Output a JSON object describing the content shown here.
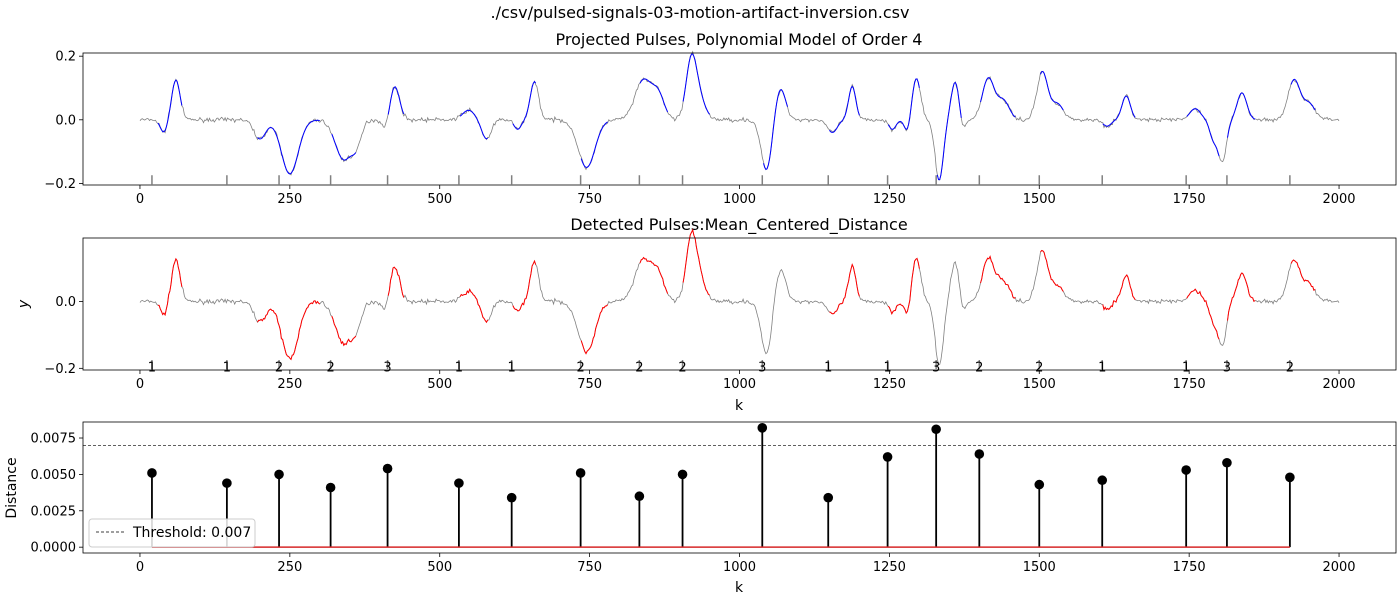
{
  "figure": {
    "suptitle": "./csv/pulsed-signals-03-motion-artifact-inversion.csv"
  },
  "colors": {
    "signal_gray": "#808080",
    "projected_blue": "#0000ff",
    "detected_red": "#ff0000",
    "stem_black": "#000000",
    "baseline_red": "#d62728",
    "axis": "#000000"
  },
  "chart_data": [
    {
      "type": "line",
      "title": "Projected Pulses, Polynomial Model of Order 4",
      "xlabel": "",
      "ylabel": "",
      "xlim": [
        -95,
        2095
      ],
      "ylim": [
        -0.205,
        0.21
      ],
      "xticks": [
        0,
        250,
        500,
        750,
        1000,
        1250,
        1500,
        1750,
        2000
      ],
      "xtick_labels": [
        "0",
        "250",
        "500",
        "750",
        "1000",
        "1250",
        "1500",
        "1750",
        "2000"
      ],
      "yticks": [
        0.2,
        0.0,
        -0.2
      ],
      "ytick_labels": [
        "0.2",
        "0.0",
        "−0.2"
      ],
      "series": [
        {
          "role": "raw signal",
          "color": "#808080"
        },
        {
          "role": "projected pulses",
          "color": "#0000ff"
        }
      ],
      "pulse_starts": [
        20,
        145,
        232,
        318,
        413,
        532,
        620,
        735,
        833,
        905,
        1038,
        1148,
        1247,
        1328,
        1400,
        1500,
        1605,
        1745,
        1813,
        1918
      ],
      "pulse_end": 1960
    },
    {
      "type": "line",
      "title": "Detected Pulses:Mean_Centered_Distance",
      "xlabel": "k",
      "ylabel": "y",
      "xlim": [
        -95,
        2095
      ],
      "ylim": [
        -0.205,
        0.19
      ],
      "xticks": [
        0,
        250,
        500,
        750,
        1000,
        1250,
        1500,
        1750,
        2000
      ],
      "xtick_labels": [
        "0",
        "250",
        "500",
        "750",
        "1000",
        "1250",
        "1500",
        "1750",
        "2000"
      ],
      "yticks": [
        0.0,
        -0.2
      ],
      "ytick_labels": [
        "0.0",
        "−0.2"
      ],
      "series": [
        {
          "role": "raw signal",
          "color": "#808080"
        },
        {
          "role": "detected pulses",
          "color": "#ff0000"
        }
      ],
      "pulse_starts": [
        20,
        145,
        232,
        318,
        413,
        532,
        620,
        735,
        833,
        905,
        1038,
        1148,
        1247,
        1328,
        1400,
        1500,
        1605,
        1745,
        1813,
        1918
      ],
      "pulse_labels": [
        "1",
        "1",
        "2",
        "2",
        "3",
        "1",
        "1",
        "2",
        "2",
        "2",
        "3",
        "1",
        "1",
        "3",
        "2",
        "2",
        "1",
        "1",
        "3",
        "2"
      ],
      "rejected_pulses": [
        1038,
        1328
      ]
    },
    {
      "type": "stem",
      "title": "",
      "xlabel": "k",
      "ylabel": "Distance",
      "xlim": [
        -95,
        2095
      ],
      "ylim": [
        -0.0004,
        0.0086
      ],
      "xticks": [
        0,
        250,
        500,
        750,
        1000,
        1250,
        1500,
        1750,
        2000
      ],
      "xtick_labels": [
        "0",
        "250",
        "500",
        "750",
        "1000",
        "1250",
        "1500",
        "1750",
        "2000"
      ],
      "yticks": [
        0.0,
        0.0025,
        0.005,
        0.0075
      ],
      "ytick_labels": [
        "0.0000",
        "0.0025",
        "0.0050",
        "0.0075"
      ],
      "x": [
        20,
        145,
        232,
        318,
        413,
        532,
        620,
        735,
        833,
        905,
        1038,
        1148,
        1247,
        1328,
        1400,
        1500,
        1605,
        1745,
        1813,
        1918
      ],
      "values": [
        0.0051,
        0.0044,
        0.005,
        0.0041,
        0.0054,
        0.0044,
        0.0034,
        0.0051,
        0.0035,
        0.005,
        0.0082,
        0.0034,
        0.0062,
        0.0081,
        0.0064,
        0.0043,
        0.0046,
        0.0053,
        0.0058,
        0.0048
      ],
      "threshold": 0.007,
      "legend": {
        "label": "Threshold: 0.007",
        "placement": "lower-left"
      }
    }
  ]
}
